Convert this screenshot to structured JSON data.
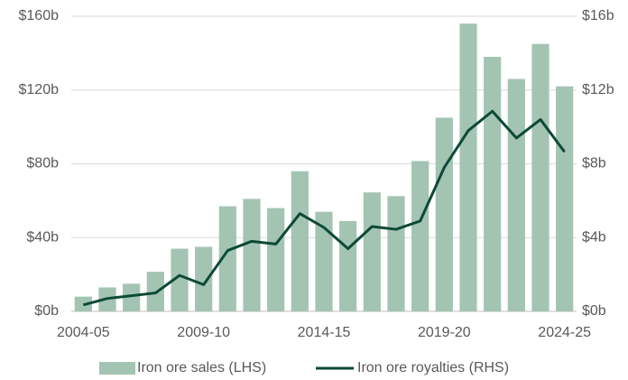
{
  "chart_data": {
    "type": "bar",
    "categories": [
      "2004-05",
      null,
      null,
      null,
      null,
      "2009-10",
      null,
      null,
      null,
      null,
      "2014-15",
      null,
      null,
      null,
      null,
      "2019-20",
      null,
      null,
      null,
      null,
      "2024-25"
    ],
    "series": [
      {
        "name": "Iron ore sales (LHS)",
        "type": "bar",
        "color": "#a3c4b2",
        "values": [
          8,
          13,
          15,
          21.5,
          34,
          35,
          57,
          61,
          56,
          76,
          54,
          49,
          64.5,
          62.5,
          81.5,
          105,
          156,
          138,
          126,
          145,
          122
        ]
      },
      {
        "name": "Iron ore royalties (RHS)",
        "type": "line",
        "axis": "y2",
        "color": "#0d4a35",
        "values": [
          0.35,
          0.7,
          0.85,
          1,
          1.95,
          1.45,
          3.3,
          3.8,
          3.65,
          5.3,
          4.55,
          3.4,
          4.6,
          4.45,
          4.9,
          7.8,
          9.8,
          10.85,
          9.4,
          10.4,
          8.65
        ]
      }
    ],
    "ylim": [
      0,
      160
    ],
    "yticks": [
      {
        "value": 0,
        "label": "$0b"
      },
      {
        "value": 40,
        "label": "$40b"
      },
      {
        "value": 80,
        "label": "$80b"
      },
      {
        "value": 120,
        "label": "$120b"
      },
      {
        "value": 160,
        "label": "$160b"
      }
    ],
    "y2lim": [
      0,
      16
    ],
    "y2ticks": [
      {
        "value": 0,
        "label": "$0b"
      },
      {
        "value": 4,
        "label": "$4b"
      },
      {
        "value": 8,
        "label": "$8b"
      },
      {
        "value": 12,
        "label": "$12b"
      },
      {
        "value": 16,
        "label": "$16b"
      }
    ],
    "grid": true,
    "legend": "bottom"
  }
}
